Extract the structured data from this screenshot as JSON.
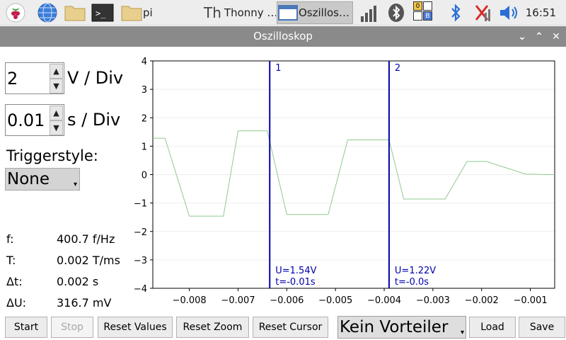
{
  "taskbar": {
    "items": [
      {
        "name": "raspberry-menu",
        "label": ""
      },
      {
        "name": "browser",
        "label": ""
      },
      {
        "name": "file-manager",
        "label": ""
      },
      {
        "name": "terminal",
        "label": ""
      }
    ],
    "windows": [
      {
        "label": "pi"
      },
      {
        "label": "Thonny  …"
      },
      {
        "label": "Oszillos…"
      }
    ],
    "tray": {
      "bt_badge_top": "0",
      "bt_badge_bottom": "B"
    },
    "clock": "16:51"
  },
  "window": {
    "title": "Oszilloskop",
    "controls": {
      "minimize": "⌄",
      "maximize": "⌃",
      "close": "✕"
    }
  },
  "controls": {
    "volts": {
      "value": "2",
      "unit": "V / Div"
    },
    "time": {
      "value": "0.01",
      "unit": "s / Div"
    },
    "trigger": {
      "label": "Triggerstyle:",
      "value": "None"
    }
  },
  "measurements": [
    {
      "label": "f:",
      "value": "400.7 f/Hz"
    },
    {
      "label": "T:",
      "value": "0.002 T/ms"
    },
    {
      "label": "Δt:",
      "value": "0.002 s"
    },
    {
      "label": "ΔU:",
      "value": "316.7 mV"
    }
  ],
  "chart_data": {
    "type": "line",
    "title": "",
    "xlabel": "",
    "ylabel": "",
    "xlim": [
      -0.00875,
      -0.0005
    ],
    "ylim": [
      -4,
      4
    ],
    "x_ticks": [
      -0.008,
      -0.007,
      -0.006,
      -0.005,
      -0.004,
      -0.003,
      -0.002,
      -0.001
    ],
    "x_tick_labels": [
      "−0.008",
      "−0.007",
      "−0.006",
      "−0.005",
      "−0.004",
      "−0.003",
      "−0.002",
      "−0.001"
    ],
    "y_ticks": [
      4,
      3,
      2,
      1,
      0,
      -1,
      -2,
      -3,
      -4
    ],
    "y_tick_labels": [
      "4",
      "3",
      "2",
      "1",
      "0",
      "−1",
      "−2",
      "−3",
      "−4"
    ],
    "series": [
      {
        "name": "signal",
        "color": "#8fca8f",
        "x": [
          -0.00875,
          -0.0085,
          -0.008,
          -0.0075,
          -0.0073,
          -0.007,
          -0.0064,
          -0.006,
          -0.0055,
          -0.00515,
          -0.00475,
          -0.00435,
          -0.0039,
          -0.0036,
          -0.00305,
          -0.00275,
          -0.0023,
          -0.0019,
          -0.0011,
          -0.0007,
          -0.0005
        ],
        "y": [
          1.28,
          1.28,
          -1.46,
          -1.46,
          -1.46,
          1.54,
          1.54,
          -1.4,
          -1.4,
          -1.4,
          1.22,
          1.22,
          1.22,
          -0.86,
          -0.86,
          -0.86,
          0.46,
          0.46,
          0.02,
          0.0,
          0.0
        ]
      }
    ],
    "cursors": [
      {
        "label": "1",
        "x": -0.00635,
        "u_text": "U=1.54V",
        "t_text": "t=-0.01s",
        "color": "#0000aa"
      },
      {
        "label": "2",
        "x": -0.0039,
        "u_text": "U=1.22V",
        "t_text": "t=-0.0s",
        "color": "#0000aa"
      }
    ]
  },
  "buttons": {
    "start": "Start",
    "stop": "Stop",
    "reset_values": "Reset Values",
    "reset_zoom": "Reset Zoom",
    "reset_cursor": "Reset Cursor",
    "divider": "Kein Vorteiler",
    "load": "Load",
    "save": "Save"
  }
}
